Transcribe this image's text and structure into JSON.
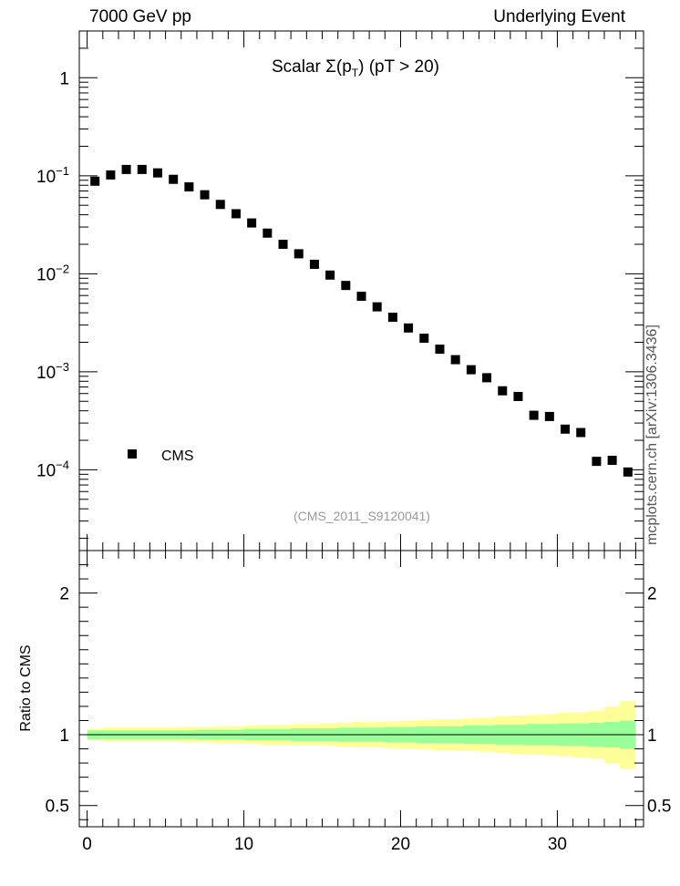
{
  "header": {
    "left": "7000 GeV pp",
    "right": "Underlying Event"
  },
  "side_note": "mcplots.cern.ch [arXiv:1306.3436]",
  "colors": {
    "marker": "#000000",
    "band_outer": "#ffff99",
    "band_inner": "#99ff99",
    "watermark": "#999999"
  },
  "chart_data": [
    {
      "type": "scatter",
      "title_main": "Scalar ",
      "title_sigma": "Σ(p",
      "title_sub": "T",
      "title_tail": ") (pT > 20)",
      "watermark": "(CMS_2011_S9120041)",
      "legend": [
        "CMS"
      ],
      "legend_position": "bottom-left",
      "yscale": "log",
      "xlim": [
        -0.5,
        35.5
      ],
      "ylim": [
        1.5e-05,
        3
      ],
      "y_ticks": [
        {
          "value": 1,
          "base": "1",
          "exp": ""
        },
        {
          "value": 0.1,
          "base": "10",
          "exp": "−1"
        },
        {
          "value": 0.01,
          "base": "10",
          "exp": "−2"
        },
        {
          "value": 0.001,
          "base": "10",
          "exp": "−3"
        },
        {
          "value": 0.0001,
          "base": "10",
          "exp": "−4"
        }
      ],
      "series": [
        {
          "name": "CMS",
          "x": [
            0.5,
            1.5,
            2.5,
            3.5,
            4.5,
            5.5,
            6.5,
            7.5,
            8.5,
            9.5,
            10.5,
            11.5,
            12.5,
            13.5,
            14.5,
            15.5,
            16.5,
            17.5,
            18.5,
            19.5,
            20.5,
            21.5,
            22.5,
            23.5,
            24.5,
            25.5,
            26.5,
            27.5,
            28.5,
            29.5,
            30.5,
            31.5,
            32.5,
            33.5,
            34.5
          ],
          "y": [
            0.088,
            0.102,
            0.116,
            0.116,
            0.107,
            0.092,
            0.077,
            0.064,
            0.051,
            0.041,
            0.033,
            0.026,
            0.02,
            0.016,
            0.0125,
            0.0097,
            0.0076,
            0.0059,
            0.0046,
            0.0036,
            0.0028,
            0.0022,
            0.0017,
            0.00133,
            0.00105,
            0.00087,
            0.00064,
            0.00056,
            0.00036,
            0.00035,
            0.00026,
            0.00024,
            0.000122,
            0.000125,
            9.5e-05
          ]
        }
      ]
    },
    {
      "type": "area",
      "ylabel": "Ratio to CMS",
      "xlim": [
        -0.5,
        35.5
      ],
      "ylim": [
        0.35,
        2.3
      ],
      "y_ticks": [
        2,
        1,
        0.5
      ],
      "y_tick_labels": [
        "2",
        "1",
        "0.5"
      ],
      "x_ticks": [
        0,
        10,
        20,
        30
      ],
      "x_tick_labels": [
        "0",
        "10",
        "20",
        "30"
      ],
      "reference_line": 1,
      "bins": [
        0,
        1,
        2,
        3,
        4,
        5,
        6,
        7,
        8,
        9,
        10,
        11,
        12,
        13,
        14,
        15,
        16,
        17,
        18,
        19,
        20,
        21,
        22,
        23,
        24,
        25,
        26,
        27,
        28,
        29,
        30,
        31,
        32,
        33,
        34,
        35
      ],
      "inner_half_width": [
        0.03,
        0.03,
        0.03,
        0.03,
        0.03,
        0.03,
        0.03,
        0.035,
        0.035,
        0.035,
        0.04,
        0.04,
        0.04,
        0.045,
        0.045,
        0.045,
        0.05,
        0.05,
        0.05,
        0.055,
        0.055,
        0.06,
        0.06,
        0.06,
        0.065,
        0.065,
        0.07,
        0.07,
        0.075,
        0.075,
        0.08,
        0.08,
        0.085,
        0.09,
        0.1
      ],
      "outer_half_width": [
        0.04,
        0.05,
        0.05,
        0.05,
        0.05,
        0.05,
        0.055,
        0.055,
        0.06,
        0.06,
        0.065,
        0.07,
        0.07,
        0.075,
        0.075,
        0.08,
        0.085,
        0.09,
        0.09,
        0.095,
        0.1,
        0.105,
        0.11,
        0.11,
        0.115,
        0.12,
        0.13,
        0.135,
        0.14,
        0.145,
        0.155,
        0.16,
        0.17,
        0.2,
        0.24
      ]
    }
  ]
}
